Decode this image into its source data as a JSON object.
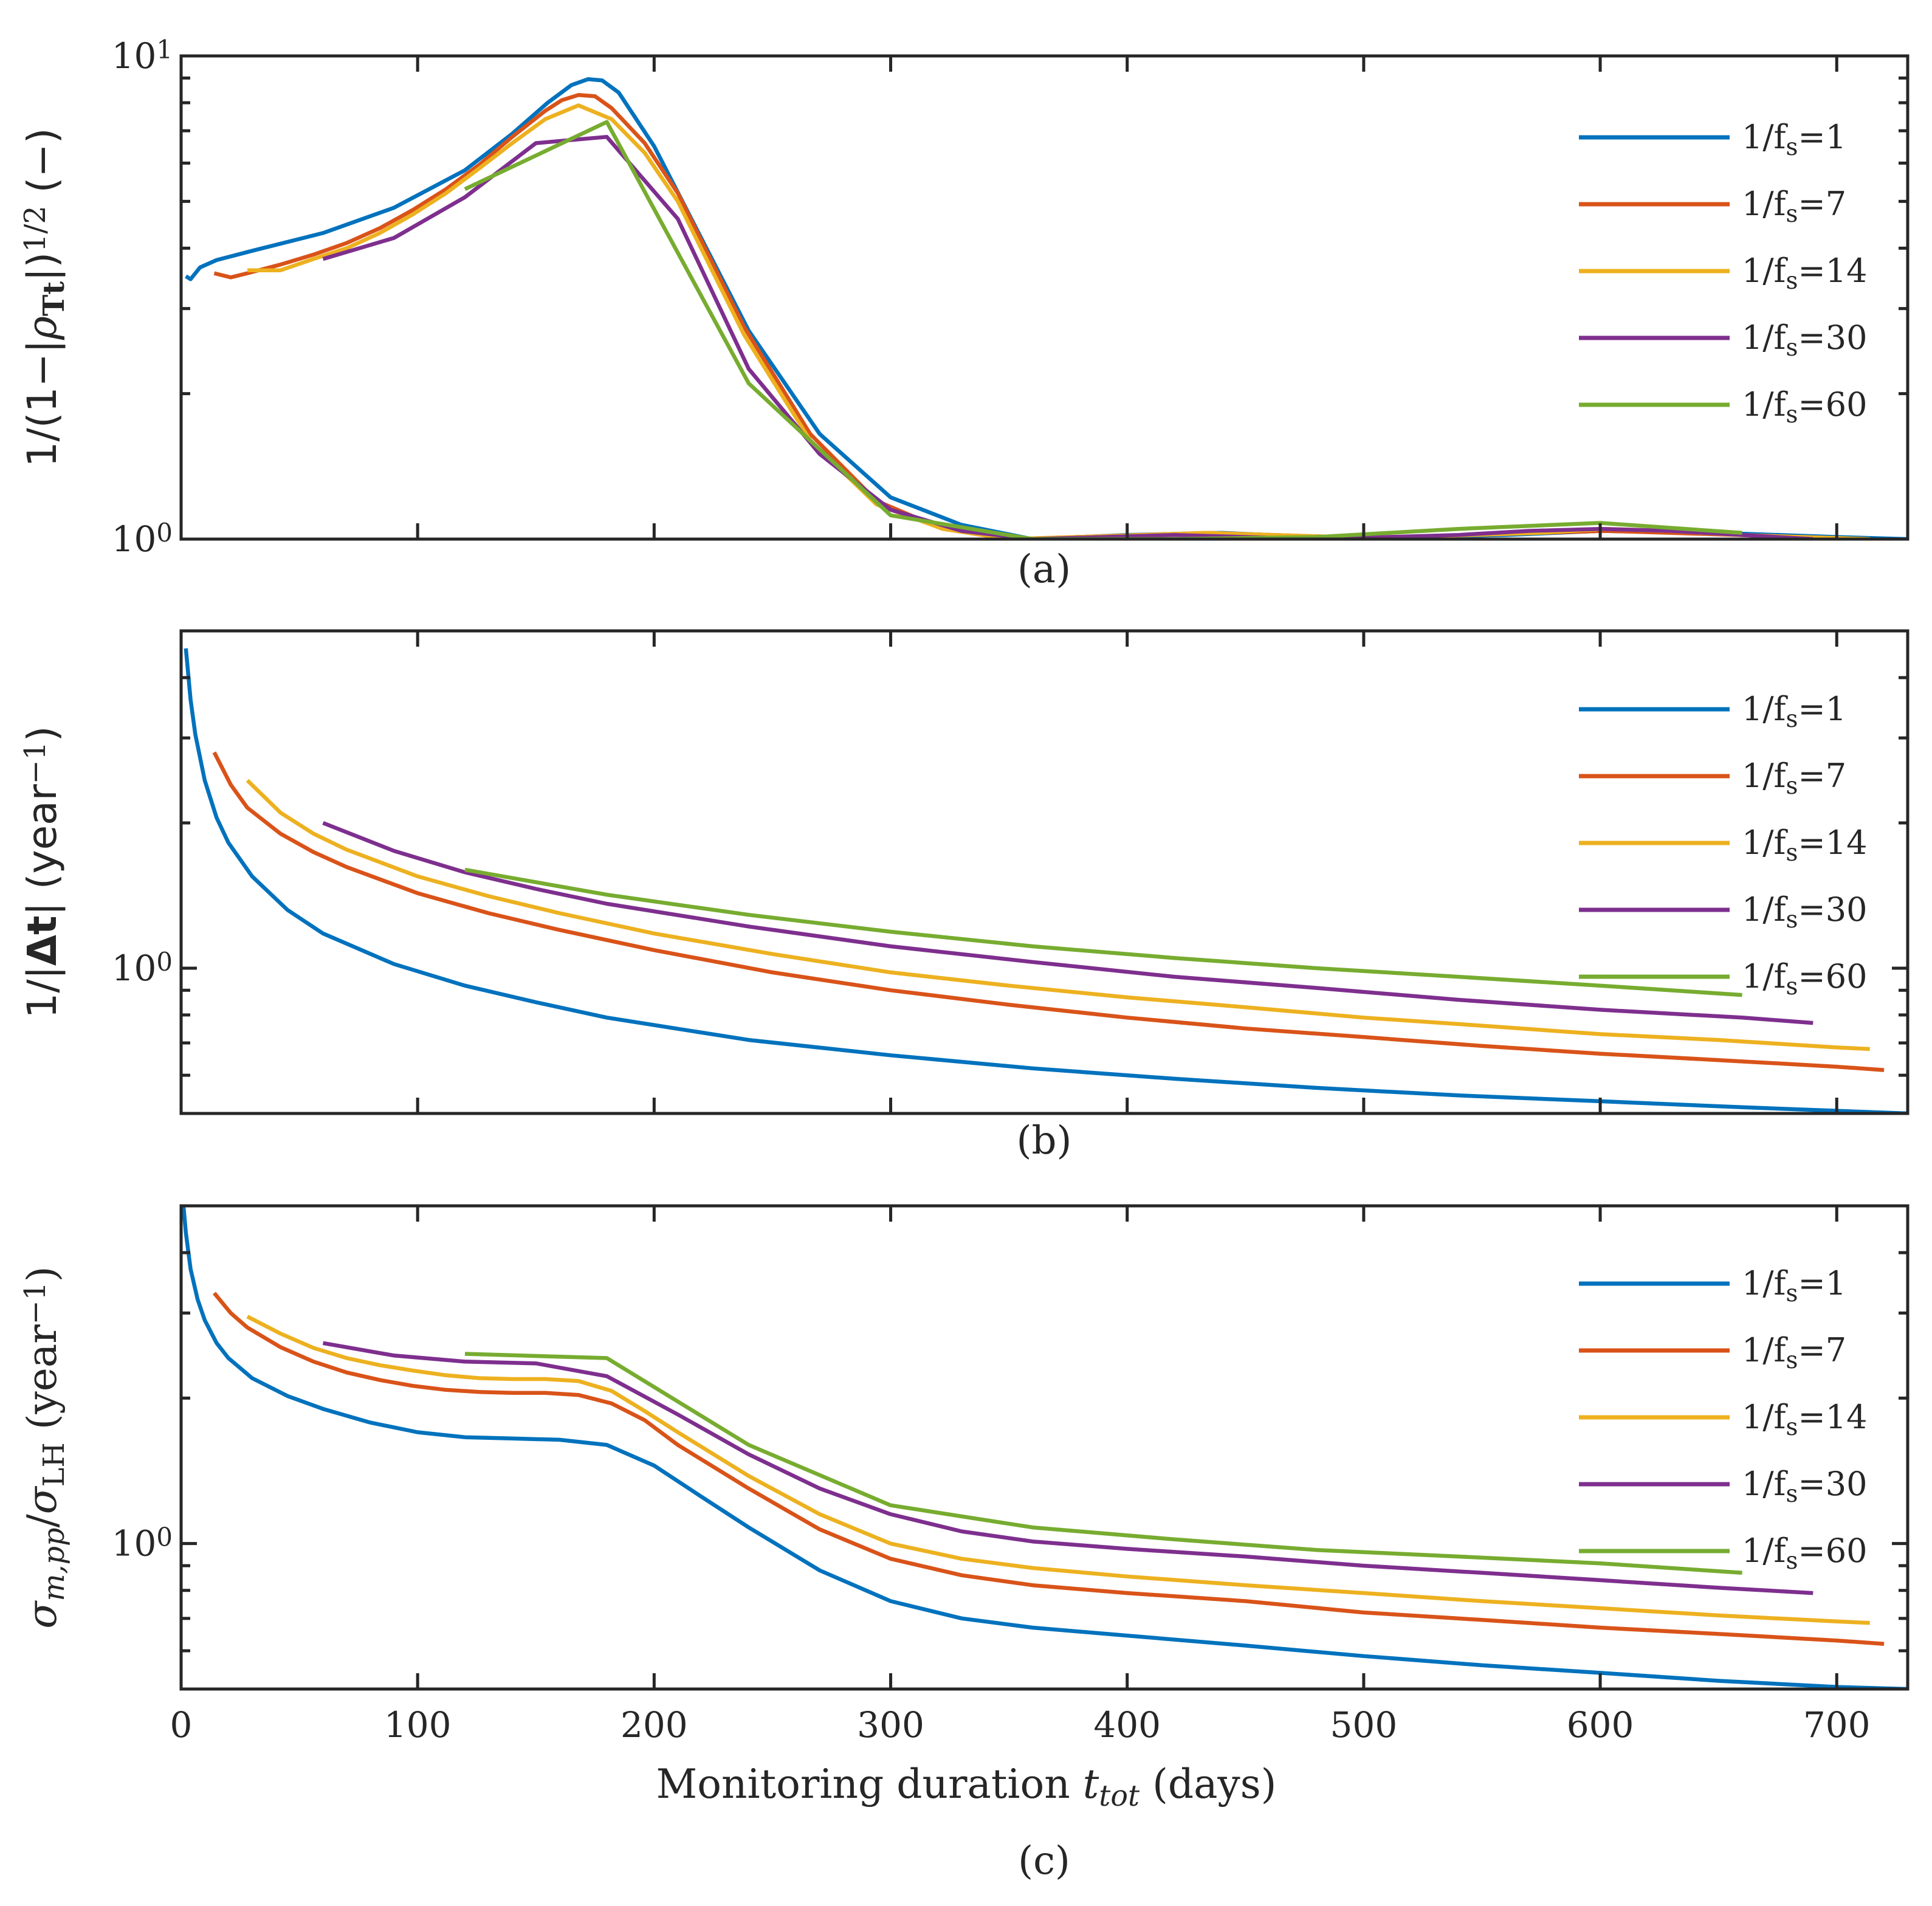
{
  "chart_data": [
    {
      "type": "line",
      "panel": "(a)",
      "caption": "(a)",
      "ylabel": "1/(1−|ρ_Tt|)^{1/2} (−)",
      "yscale": "log",
      "ylim": [
        1,
        10
      ],
      "xlim": [
        0,
        730
      ],
      "yticks": [
        {
          "value": 1,
          "label": "10^0"
        },
        {
          "value": 10,
          "label": "10^1"
        }
      ],
      "legend": [
        "1/f_s=1",
        "1/f_s=7",
        "1/f_s=14",
        "1/f_s=30",
        "1/f_s=60"
      ],
      "series": [
        {
          "name": "1/f_s=1",
          "color": "#0072BD",
          "x": [
            2,
            4,
            8,
            15,
            30,
            60,
            90,
            120,
            140,
            155,
            165,
            172,
            178,
            185,
            200,
            240,
            270,
            300,
            330,
            360,
            400,
            440,
            480,
            520,
            560,
            600,
            650,
            700,
            730
          ],
          "y": [
            3.5,
            3.45,
            3.65,
            3.78,
            3.95,
            4.3,
            4.85,
            5.8,
            6.9,
            8.0,
            8.7,
            8.95,
            8.9,
            8.4,
            6.5,
            2.7,
            1.65,
            1.22,
            1.07,
            1.0,
            1.02,
            1.03,
            1.01,
            1.01,
            1.02,
            1.04,
            1.03,
            1.01,
            1.0
          ]
        },
        {
          "name": "1/f_s=7",
          "color": "#D95319",
          "x": [
            14,
            21,
            28,
            42,
            56,
            70,
            84,
            98,
            112,
            126,
            140,
            154,
            161,
            168,
            175,
            182,
            196,
            210,
            238,
            266,
            294,
            322,
            350,
            378,
            406,
            434,
            462,
            490,
            518,
            546,
            574,
            602,
            630,
            658,
            686,
            714
          ],
          "y": [
            3.55,
            3.48,
            3.55,
            3.7,
            3.88,
            4.1,
            4.4,
            4.8,
            5.3,
            5.95,
            6.8,
            7.7,
            8.1,
            8.3,
            8.25,
            7.8,
            6.6,
            5.2,
            2.75,
            1.65,
            1.2,
            1.05,
            1.0,
            1.01,
            1.02,
            1.03,
            1.02,
            1.01,
            1.01,
            1.02,
            1.03,
            1.04,
            1.03,
            1.02,
            1.01,
            1.0
          ]
        },
        {
          "name": "1/f_s=14",
          "color": "#EDB120",
          "x": [
            28,
            42,
            56,
            70,
            84,
            98,
            112,
            126,
            140,
            154,
            168,
            182,
            196,
            210,
            238,
            266,
            294,
            322,
            350,
            378,
            406,
            434,
            462,
            490,
            518,
            546,
            574,
            602,
            630,
            658,
            686,
            714
          ],
          "y": [
            3.6,
            3.6,
            3.8,
            4.0,
            4.3,
            4.7,
            5.2,
            5.85,
            6.6,
            7.4,
            7.9,
            7.4,
            6.3,
            5.0,
            2.65,
            1.6,
            1.18,
            1.05,
            1.0,
            1.01,
            1.02,
            1.03,
            1.02,
            1.01,
            1.01,
            1.02,
            1.03,
            1.05,
            1.04,
            1.02,
            1.01,
            1.0
          ]
        },
        {
          "name": "1/f_s=30",
          "color": "#7E2F8E",
          "x": [
            60,
            90,
            120,
            150,
            180,
            210,
            240,
            270,
            300,
            330,
            360,
            390,
            420,
            450,
            480,
            510,
            540,
            570,
            600,
            630,
            660,
            690
          ],
          "y": [
            3.8,
            4.2,
            5.1,
            6.6,
            6.8,
            4.6,
            2.25,
            1.5,
            1.15,
            1.04,
            1.0,
            1.01,
            1.02,
            1.01,
            1.0,
            1.01,
            1.02,
            1.04,
            1.05,
            1.04,
            1.02,
            1.0
          ]
        },
        {
          "name": "1/f_s=60",
          "color": "#77AC30",
          "x": [
            120,
            180,
            240,
            300,
            360,
            420,
            480,
            540,
            600,
            660
          ],
          "y": [
            5.3,
            7.3,
            2.1,
            1.12,
            1.0,
            1.0,
            1.01,
            1.05,
            1.08,
            1.03
          ]
        }
      ]
    },
    {
      "type": "line",
      "panel": "(b)",
      "caption": "(b)",
      "ylabel": "1/|Δt| (year^−1)",
      "yscale": "log",
      "ylim": [
        0.5,
        5
      ],
      "xlim": [
        0,
        730
      ],
      "yticks": [
        {
          "value": 1,
          "label": "10^0"
        }
      ],
      "legend": [
        "1/f_s=1",
        "1/f_s=7",
        "1/f_s=14",
        "1/f_s=30",
        "1/f_s=60"
      ],
      "series": [
        {
          "name": "1/f_s=1",
          "color": "#0072BD",
          "x": [
            2,
            4,
            6,
            10,
            15,
            20,
            30,
            45,
            60,
            90,
            120,
            150,
            180,
            240,
            300,
            360,
            420,
            480,
            540,
            600,
            660,
            730
          ],
          "y": [
            4.6,
            3.6,
            3.05,
            2.45,
            2.05,
            1.82,
            1.55,
            1.32,
            1.18,
            1.02,
            0.92,
            0.85,
            0.79,
            0.71,
            0.66,
            0.62,
            0.59,
            0.565,
            0.545,
            0.53,
            0.515,
            0.5
          ]
        },
        {
          "name": "1/f_s=7",
          "color": "#D95319",
          "x": [
            14,
            21,
            28,
            42,
            56,
            70,
            100,
            130,
            160,
            200,
            250,
            300,
            350,
            400,
            450,
            500,
            550,
            600,
            650,
            700,
            720
          ],
          "y": [
            2.8,
            2.4,
            2.15,
            1.9,
            1.74,
            1.62,
            1.43,
            1.3,
            1.2,
            1.09,
            0.98,
            0.9,
            0.84,
            0.79,
            0.75,
            0.72,
            0.69,
            0.665,
            0.645,
            0.625,
            0.615
          ]
        },
        {
          "name": "1/f_s=14",
          "color": "#EDB120",
          "x": [
            28,
            42,
            56,
            70,
            100,
            130,
            160,
            200,
            250,
            300,
            350,
            400,
            450,
            500,
            550,
            600,
            650,
            700,
            714
          ],
          "y": [
            2.45,
            2.1,
            1.9,
            1.76,
            1.55,
            1.41,
            1.3,
            1.18,
            1.07,
            0.98,
            0.92,
            0.87,
            0.83,
            0.79,
            0.76,
            0.73,
            0.71,
            0.685,
            0.68
          ]
        },
        {
          "name": "1/f_s=30",
          "color": "#7E2F8E",
          "x": [
            60,
            90,
            120,
            150,
            180,
            240,
            300,
            360,
            420,
            480,
            540,
            600,
            660,
            690
          ],
          "y": [
            2.0,
            1.75,
            1.58,
            1.46,
            1.36,
            1.22,
            1.11,
            1.03,
            0.96,
            0.91,
            0.86,
            0.82,
            0.79,
            0.77
          ]
        },
        {
          "name": "1/f_s=60",
          "color": "#77AC30",
          "x": [
            120,
            180,
            240,
            300,
            360,
            420,
            480,
            540,
            600,
            660
          ],
          "y": [
            1.6,
            1.42,
            1.29,
            1.19,
            1.11,
            1.05,
            1.0,
            0.96,
            0.92,
            0.88
          ]
        }
      ]
    },
    {
      "type": "line",
      "panel": "(c)",
      "caption": "(c)",
      "ylabel": "σ_{m,pp}/σ_LH (year^−1)",
      "xlabel": "Monitoring duration t_tot (days)",
      "yscale": "log",
      "ylim": [
        0.5,
        5
      ],
      "xlim": [
        0,
        730
      ],
      "xticks": [
        0,
        100,
        200,
        300,
        400,
        500,
        600,
        700
      ],
      "yticks": [
        {
          "value": 1,
          "label": "10^0"
        }
      ],
      "legend": [
        "1/f_s=1",
        "1/f_s=7",
        "1/f_s=14",
        "1/f_s=30",
        "1/f_s=60"
      ],
      "series": [
        {
          "name": "1/f_s=1",
          "color": "#0072BD",
          "x": [
            1,
            2,
            4,
            7,
            10,
            15,
            20,
            30,
            45,
            60,
            80,
            100,
            120,
            140,
            160,
            180,
            200,
            220,
            240,
            270,
            300,
            330,
            360,
            400,
            450,
            500,
            550,
            600,
            650,
            700,
            730
          ],
          "y": [
            5.0,
            4.4,
            3.7,
            3.2,
            2.9,
            2.6,
            2.42,
            2.2,
            2.02,
            1.9,
            1.78,
            1.7,
            1.66,
            1.65,
            1.64,
            1.6,
            1.45,
            1.25,
            1.08,
            0.88,
            0.76,
            0.7,
            0.67,
            0.645,
            0.615,
            0.585,
            0.56,
            0.54,
            0.52,
            0.505,
            0.5
          ]
        },
        {
          "name": "1/f_s=7",
          "color": "#D95319",
          "x": [
            14,
            21,
            28,
            42,
            56,
            70,
            84,
            98,
            112,
            126,
            140,
            154,
            168,
            182,
            196,
            210,
            240,
            270,
            300,
            330,
            360,
            400,
            450,
            500,
            550,
            600,
            650,
            700,
            720
          ],
          "y": [
            3.3,
            3.0,
            2.8,
            2.55,
            2.38,
            2.26,
            2.18,
            2.12,
            2.08,
            2.06,
            2.05,
            2.05,
            2.03,
            1.95,
            1.8,
            1.6,
            1.3,
            1.07,
            0.93,
            0.86,
            0.82,
            0.79,
            0.76,
            0.72,
            0.695,
            0.67,
            0.65,
            0.63,
            0.62
          ]
        },
        {
          "name": "1/f_s=14",
          "color": "#EDB120",
          "x": [
            28,
            42,
            56,
            70,
            84,
            98,
            112,
            126,
            140,
            154,
            168,
            182,
            196,
            210,
            240,
            270,
            300,
            330,
            360,
            400,
            450,
            500,
            550,
            600,
            650,
            700,
            714
          ],
          "y": [
            2.95,
            2.72,
            2.54,
            2.42,
            2.34,
            2.28,
            2.23,
            2.2,
            2.19,
            2.19,
            2.17,
            2.07,
            1.88,
            1.7,
            1.38,
            1.15,
            1.0,
            0.93,
            0.89,
            0.855,
            0.82,
            0.79,
            0.76,
            0.735,
            0.71,
            0.69,
            0.685
          ]
        },
        {
          "name": "1/f_s=30",
          "color": "#7E2F8E",
          "x": [
            60,
            90,
            120,
            150,
            180,
            210,
            240,
            270,
            300,
            330,
            360,
            400,
            450,
            500,
            550,
            600,
            650,
            690
          ],
          "y": [
            2.6,
            2.45,
            2.38,
            2.36,
            2.22,
            1.85,
            1.53,
            1.3,
            1.15,
            1.06,
            1.01,
            0.975,
            0.94,
            0.9,
            0.87,
            0.84,
            0.81,
            0.79
          ]
        },
        {
          "name": "1/f_s=60",
          "color": "#77AC30",
          "x": [
            120,
            180,
            240,
            300,
            360,
            420,
            480,
            540,
            600,
            660
          ],
          "y": [
            2.47,
            2.42,
            1.6,
            1.2,
            1.08,
            1.02,
            0.97,
            0.94,
            0.91,
            0.87
          ]
        }
      ]
    }
  ]
}
